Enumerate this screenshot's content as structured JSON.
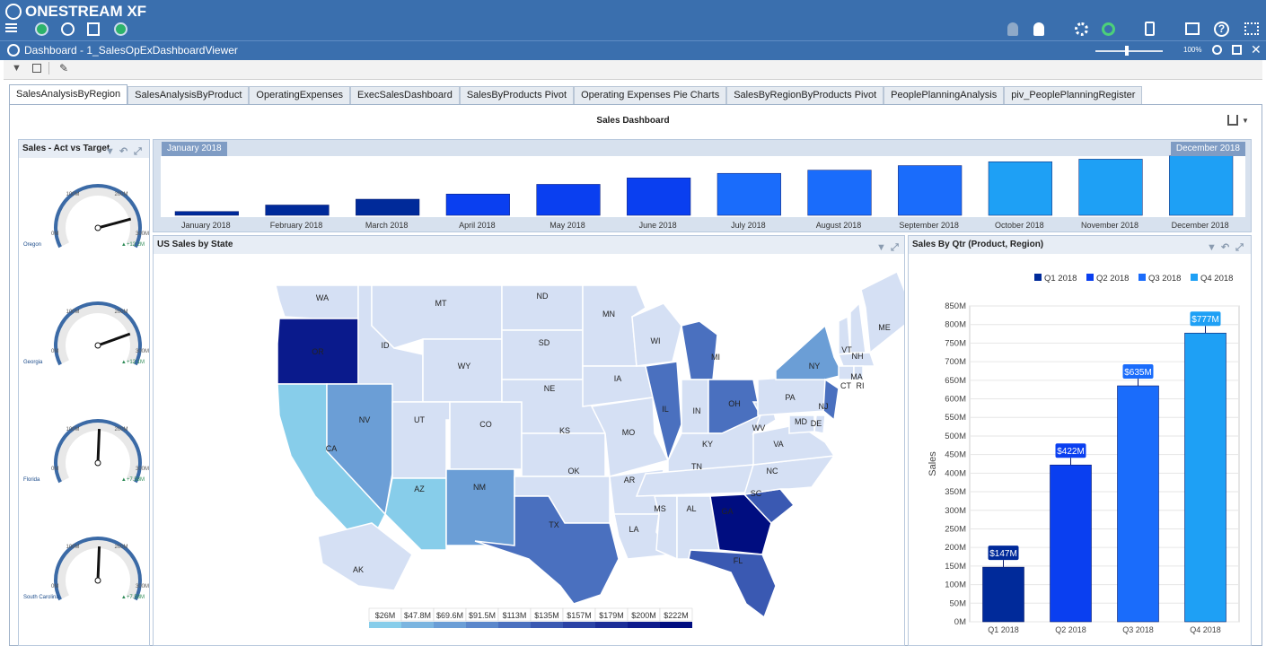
{
  "app": {
    "brand": "ONESTREAM XF"
  },
  "window": {
    "title": "Dashboard - 1_SalesOpExDashboardViewer",
    "zoom": "100%"
  },
  "tabs": [
    "SalesAnalysisByRegion",
    "SalesAnalysisByProduct",
    "OperatingExpenses",
    "ExecSalesDashboard",
    "SalesByProducts Pivot",
    "Operating Expenses Pie Charts",
    "SalesByRegionByProducts Pivot",
    "PeoplePlanningAnalysis",
    "piv_PeoplePlanningRegister"
  ],
  "dashboard_title": "Sales Dashboard",
  "left_panel": {
    "title": "Sales - Act vs Target",
    "gauges": [
      {
        "name": "Oregon",
        "delta": "+12.2M",
        "min": "0M",
        "mid": "100M",
        "hi": "200M",
        "max": "300M",
        "value": 0.82
      },
      {
        "name": "Georgia",
        "delta": "+12.1M",
        "min": "0M",
        "mid": "100M",
        "hi": "200M",
        "max": "300M",
        "value": 0.8
      },
      {
        "name": "Florida",
        "delta": "+7.58M",
        "min": "0M",
        "mid": "100M",
        "hi": "200M",
        "max": "300M",
        "value": 0.51
      },
      {
        "name": "South Carolina",
        "delta": "+7.58M",
        "min": "0M",
        "mid": "100M",
        "hi": "200M",
        "max": "300M",
        "value": 0.51
      }
    ]
  },
  "timeline": {
    "start_label": "January 2018",
    "end_label": "December 2018"
  },
  "map_panel": {
    "title": "US Sales by State",
    "legend": [
      "$26M",
      "$47.8M",
      "$69.6M",
      "$91.5M",
      "$113M",
      "$135M",
      "$157M",
      "$179M",
      "$200M",
      "$222M"
    ],
    "legend_colors": [
      "#87cdea",
      "#7bb5e0",
      "#6b9ed6",
      "#5b87cb",
      "#4a70bf",
      "#3a59b2",
      "#2b43a5",
      "#1c2e98",
      "#0e1b8c",
      "#000d80"
    ]
  },
  "qtr_panel": {
    "title": "Sales By Qtr (Product, Region)"
  },
  "chart_data": [
    {
      "type": "bar",
      "categories": [
        "January 2018",
        "February 2018",
        "March 2018",
        "April 2018",
        "May 2018",
        "June 2018",
        "July 2018",
        "August 2018",
        "September 2018",
        "October 2018",
        "November 2018",
        "December 2018"
      ],
      "values": [
        6,
        16,
        25,
        33,
        48,
        58,
        65,
        70,
        77,
        83,
        87,
        92
      ],
      "colors": [
        "#002a9a",
        "#002a9a",
        "#002a9a",
        "#0a3ff0",
        "#0a3ff0",
        "#0a3ff0",
        "#1a6cfb",
        "#1a6cfb",
        "#1a6cfb",
        "#1ea0f5",
        "#1ea0f5",
        "#1ea0f5"
      ],
      "ylim": [
        0,
        100
      ]
    },
    {
      "type": "bar",
      "categories": [
        "Q1 2018",
        "Q2 2018",
        "Q3 2018",
        "Q4 2018"
      ],
      "values": [
        147,
        422,
        635,
        777
      ],
      "labels": [
        "$147M",
        "$422M",
        "$635M",
        "$777M"
      ],
      "colors": [
        "#002a9a",
        "#0a3ff0",
        "#1a6cfb",
        "#1ea0f5"
      ],
      "ylabel": "Sales",
      "yticks": [
        "0M",
        "50M",
        "100M",
        "150M",
        "200M",
        "250M",
        "300M",
        "350M",
        "400M",
        "450M",
        "500M",
        "550M",
        "600M",
        "650M",
        "700M",
        "750M",
        "800M",
        "850M"
      ],
      "ylim": [
        0,
        850
      ],
      "legend": [
        "Q1 2018",
        "Q2 2018",
        "Q3 2018",
        "Q4 2018"
      ],
      "legend_position": "top"
    }
  ],
  "states": [
    {
      "code": "WA",
      "color": "#d5e0f4"
    },
    {
      "code": "OR",
      "color": "#0a1a8c"
    },
    {
      "code": "CA",
      "color": "#87cdea"
    },
    {
      "code": "ID",
      "color": "#d5e0f4"
    },
    {
      "code": "NV",
      "color": "#6b9ed6"
    },
    {
      "code": "MT",
      "color": "#d5e0f4"
    },
    {
      "code": "WY",
      "color": "#d5e0f4"
    },
    {
      "code": "UT",
      "color": "#d5e0f4"
    },
    {
      "code": "AZ",
      "color": "#87cdea"
    },
    {
      "code": "CO",
      "color": "#d5e0f4"
    },
    {
      "code": "NM",
      "color": "#6b9ed6"
    },
    {
      "code": "ND",
      "color": "#d5e0f4"
    },
    {
      "code": "SD",
      "color": "#d5e0f4"
    },
    {
      "code": "NE",
      "color": "#d5e0f4"
    },
    {
      "code": "KS",
      "color": "#d5e0f4"
    },
    {
      "code": "OK",
      "color": "#d5e0f4"
    },
    {
      "code": "TX",
      "color": "#4a70bf"
    },
    {
      "code": "MN",
      "color": "#d5e0f4"
    },
    {
      "code": "IA",
      "color": "#d5e0f4"
    },
    {
      "code": "MO",
      "color": "#d5e0f4"
    },
    {
      "code": "AR",
      "color": "#d5e0f4"
    },
    {
      "code": "LA",
      "color": "#d5e0f4"
    },
    {
      "code": "WI",
      "color": "#d5e0f4"
    },
    {
      "code": "IL",
      "color": "#4a70bf"
    },
    {
      "code": "MI",
      "color": "#4a70bf"
    },
    {
      "code": "IN",
      "color": "#d5e0f4"
    },
    {
      "code": "OH",
      "color": "#4a70bf"
    },
    {
      "code": "KY",
      "color": "#d5e0f4"
    },
    {
      "code": "TN",
      "color": "#d5e0f4"
    },
    {
      "code": "MS",
      "color": "#d5e0f4"
    },
    {
      "code": "AL",
      "color": "#d5e0f4"
    },
    {
      "code": "GA",
      "color": "#000d80"
    },
    {
      "code": "FL",
      "color": "#3a59b2"
    },
    {
      "code": "SC",
      "color": "#3a59b2"
    },
    {
      "code": "NC",
      "color": "#d5e0f4"
    },
    {
      "code": "VA",
      "color": "#d5e0f4"
    },
    {
      "code": "WV",
      "color": "#d5e0f4"
    },
    {
      "code": "PA",
      "color": "#d5e0f4"
    },
    {
      "code": "NY",
      "color": "#6b9ed6"
    },
    {
      "code": "VT",
      "color": "#d5e0f4"
    },
    {
      "code": "NH",
      "color": "#d5e0f4"
    },
    {
      "code": "ME",
      "color": "#d5e0f4"
    },
    {
      "code": "MA",
      "color": "#d5e0f4"
    },
    {
      "code": "CT",
      "color": "#d5e0f4"
    },
    {
      "code": "RI",
      "color": "#d5e0f4"
    },
    {
      "code": "NJ",
      "color": "#4a70bf"
    },
    {
      "code": "DE",
      "color": "#d5e0f4"
    },
    {
      "code": "MD",
      "color": "#d5e0f4"
    },
    {
      "code": "AK",
      "color": "#d5e0f4"
    }
  ]
}
